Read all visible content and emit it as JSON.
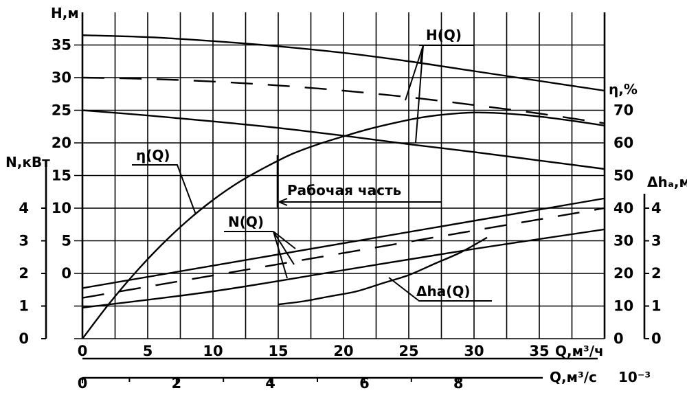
{
  "chart_data": {
    "type": "line",
    "axes": {
      "x_top": {
        "label": "Q,м³/ч",
        "ticks": [
          "0",
          "5",
          "10",
          "15",
          "20",
          "25",
          "30",
          "35"
        ],
        "range": [
          0,
          40
        ]
      },
      "x_bottom": {
        "label": "Q,м³/с",
        "unit_suffix": "10⁻³",
        "ticks": [
          "0",
          "2",
          "4",
          "6",
          "8"
        ],
        "range": [
          0,
          11.1
        ]
      },
      "y_head": {
        "label": "H,м",
        "ticks": [
          "0",
          "5",
          "10",
          "15",
          "20",
          "25",
          "30",
          "35"
        ],
        "range": [
          -5,
          36
        ]
      },
      "y_power": {
        "label": "N,кВт",
        "ticks": [
          "0",
          "1",
          "2",
          "3",
          "4"
        ],
        "range": [
          0,
          4.6
        ]
      },
      "y_eff": {
        "label": "η,%",
        "ticks": [
          "0",
          "10",
          "20",
          "30",
          "40",
          "50",
          "60",
          "70"
        ],
        "range": [
          0,
          75
        ]
      },
      "y_npsh": {
        "label": "Δhₐ,м",
        "ticks": [
          "0",
          "1",
          "2",
          "3",
          "4"
        ],
        "range": [
          0,
          4.4
        ]
      }
    },
    "curve_labels": {
      "head": "H(Q)",
      "eff": "η(Q)",
      "power": "N(Q)",
      "npsh": "Δhа(Q)",
      "working": "Рабочая  часть"
    },
    "series": [
      {
        "key": "head_max",
        "axis": "y_head",
        "style": "solid",
        "x": [
          0,
          5,
          10,
          15,
          20,
          25,
          30,
          35,
          40
        ],
        "y": [
          36.5,
          36.2,
          35.6,
          34.8,
          33.8,
          32.5,
          31,
          29.5,
          28
        ]
      },
      {
        "key": "head_mid",
        "axis": "y_head",
        "style": "dashed",
        "x": [
          0,
          5,
          10,
          15,
          20,
          25,
          30,
          35,
          40
        ],
        "y": [
          30,
          29.8,
          29.4,
          28.8,
          28,
          27,
          25.8,
          24.5,
          23
        ]
      },
      {
        "key": "head_min",
        "axis": "y_head",
        "style": "solid",
        "x": [
          0,
          5,
          10,
          15,
          20,
          25,
          30,
          35,
          40
        ],
        "y": [
          25,
          24.2,
          23.3,
          22.3,
          21.1,
          19.8,
          18.6,
          17.3,
          16
        ]
      },
      {
        "key": "eff",
        "axis": "y_eff",
        "style": "solid",
        "x": [
          0,
          2,
          4,
          6,
          8,
          10,
          12,
          14,
          16,
          18,
          20,
          22,
          24,
          26,
          28,
          30,
          32,
          34,
          36,
          38,
          40
        ],
        "y": [
          0,
          10.5,
          20,
          28.5,
          36,
          42.5,
          48,
          52.5,
          56.5,
          59.5,
          62,
          64.3,
          66.2,
          67.8,
          68.8,
          69.3,
          69.1,
          68.5,
          67.6,
          66.5,
          65.3
        ]
      },
      {
        "key": "power_max",
        "axis": "y_power",
        "style": "solid",
        "x": [
          0,
          40
        ],
        "y": [
          1.55,
          4.3
        ]
      },
      {
        "key": "power_mid",
        "axis": "y_power",
        "style": "dashed",
        "x": [
          0,
          40
        ],
        "y": [
          1.25,
          4.0
        ]
      },
      {
        "key": "power_min",
        "axis": "y_power",
        "style": "solid",
        "x": [
          0,
          10,
          20,
          30,
          40
        ],
        "y": [
          0.95,
          1.45,
          2.1,
          2.75,
          3.35
        ]
      },
      {
        "key": "npsh",
        "axis": "y_npsh",
        "style": "solid",
        "x": [
          15,
          17,
          19,
          21,
          23,
          25,
          27,
          29,
          31
        ],
        "y": [
          1.05,
          1.15,
          1.3,
          1.45,
          1.7,
          1.95,
          2.3,
          2.65,
          3.1
        ]
      }
    ],
    "working_range_q": [
      15,
      28
    ]
  }
}
